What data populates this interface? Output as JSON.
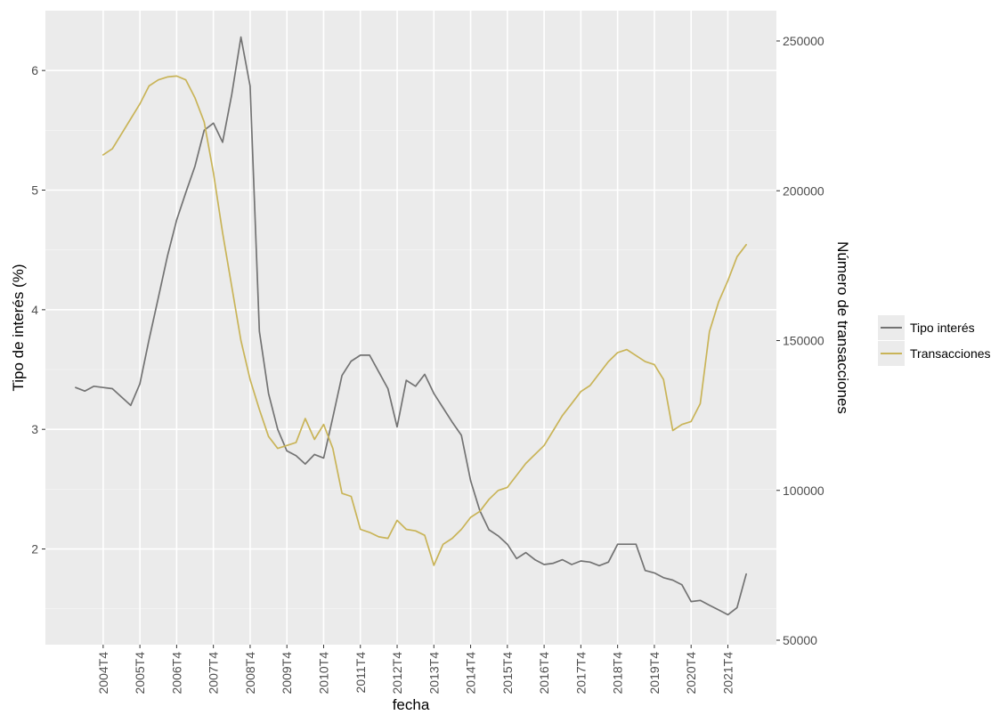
{
  "chart_data": {
    "type": "line",
    "xlabel": "fecha",
    "ylabel_left": "Tipo de interés (%)",
    "ylabel_right": "Número de transacciones",
    "x_tick_labels": [
      "2004T4",
      "2005T4",
      "2006T4",
      "2007T4",
      "2008T4",
      "2009T4",
      "2010T4",
      "2011T4",
      "2012T4",
      "2013T4",
      "2014T4",
      "2015T4",
      "2016T4",
      "2017T4",
      "2018T4",
      "2019T4",
      "2020T4",
      "2021T4"
    ],
    "x_range": [
      "2004T1",
      "2022T2"
    ],
    "ylim_left": [
      1.2,
      6.5
    ],
    "ylim_right": [
      50000,
      250000
    ],
    "yticks_left": [
      "2",
      "3",
      "4",
      "5",
      "6"
    ],
    "yticks_right": [
      "50000",
      "100000",
      "150000",
      "200000",
      "250000"
    ],
    "legend_placement": "right",
    "grid": true,
    "series": [
      {
        "name": "Tipo interés",
        "axis": "left",
        "color": "#737373",
        "values": [
          [
            "2004T1",
            3.35
          ],
          [
            "2004T2",
            3.32
          ],
          [
            "2004T3",
            3.36
          ],
          [
            "2004T4",
            3.35
          ],
          [
            "2005T1",
            3.34
          ],
          [
            "2005T2",
            3.27
          ],
          [
            "2005T3",
            3.2
          ],
          [
            "2005T4",
            3.38
          ],
          [
            "2006T1",
            3.75
          ],
          [
            "2006T2",
            4.1
          ],
          [
            "2006T3",
            4.45
          ],
          [
            "2006T4",
            4.75
          ],
          [
            "2007T1",
            4.98
          ],
          [
            "2007T2",
            5.2
          ],
          [
            "2007T3",
            5.5
          ],
          [
            "2007T4",
            5.56
          ],
          [
            "2008T1",
            5.4
          ],
          [
            "2008T2",
            5.8
          ],
          [
            "2008T3",
            6.28
          ],
          [
            "2008T4",
            5.87
          ],
          [
            "2009T1",
            3.82
          ],
          [
            "2009T2",
            3.3
          ],
          [
            "2009T3",
            3.0
          ],
          [
            "2009T4",
            2.82
          ],
          [
            "2010T1",
            2.78
          ],
          [
            "2010T2",
            2.71
          ],
          [
            "2010T3",
            2.79
          ],
          [
            "2010T4",
            2.76
          ],
          [
            "2011T1",
            3.1
          ],
          [
            "2011T2",
            3.45
          ],
          [
            "2011T3",
            3.57
          ],
          [
            "2011T4",
            3.62
          ],
          [
            "2012T1",
            3.62
          ],
          [
            "2012T2",
            3.48
          ],
          [
            "2012T3",
            3.34
          ],
          [
            "2012T4",
            3.02
          ],
          [
            "2013T1",
            3.41
          ],
          [
            "2013T2",
            3.36
          ],
          [
            "2013T3",
            3.46
          ],
          [
            "2013T4",
            3.3
          ],
          [
            "2014T1",
            3.18
          ],
          [
            "2014T2",
            3.06
          ],
          [
            "2014T3",
            2.95
          ],
          [
            "2014T4",
            2.57
          ],
          [
            "2015T1",
            2.32
          ],
          [
            "2015T2",
            2.16
          ],
          [
            "2015T3",
            2.11
          ],
          [
            "2015T4",
            2.04
          ],
          [
            "2016T1",
            1.92
          ],
          [
            "2016T2",
            1.97
          ],
          [
            "2016T3",
            1.91
          ],
          [
            "2016T4",
            1.87
          ],
          [
            "2017T1",
            1.88
          ],
          [
            "2017T2",
            1.91
          ],
          [
            "2017T3",
            1.87
          ],
          [
            "2017T4",
            1.9
          ],
          [
            "2018T1",
            1.89
          ],
          [
            "2018T2",
            1.86
          ],
          [
            "2018T3",
            1.89
          ],
          [
            "2018T4",
            2.04
          ],
          [
            "2019T1",
            2.04
          ],
          [
            "2019T2",
            2.04
          ],
          [
            "2019T3",
            1.82
          ],
          [
            "2019T4",
            1.8
          ],
          [
            "2020T1",
            1.76
          ],
          [
            "2020T2",
            1.74
          ],
          [
            "2020T3",
            1.7
          ],
          [
            "2020T4",
            1.56
          ],
          [
            "2021T1",
            1.57
          ],
          [
            "2021T2",
            1.53
          ],
          [
            "2021T3",
            1.49
          ],
          [
            "2021T4",
            1.45
          ],
          [
            "2022T1",
            1.51
          ],
          [
            "2022T2",
            1.79
          ]
        ]
      },
      {
        "name": "Transacciones",
        "axis": "right",
        "color": "#c9b458",
        "values": [
          [
            "2004T4",
            212000
          ],
          [
            "2005T1",
            214000
          ],
          [
            "2005T2",
            219000
          ],
          [
            "2005T3",
            224000
          ],
          [
            "2005T4",
            229000
          ],
          [
            "2006T1",
            235000
          ],
          [
            "2006T2",
            237000
          ],
          [
            "2006T3",
            238000
          ],
          [
            "2006T4",
            238300
          ],
          [
            "2007T1",
            237000
          ],
          [
            "2007T2",
            231000
          ],
          [
            "2007T3",
            223000
          ],
          [
            "2007T4",
            206000
          ],
          [
            "2008T1",
            186000
          ],
          [
            "2008T2",
            168000
          ],
          [
            "2008T3",
            150000
          ],
          [
            "2008T4",
            137000
          ],
          [
            "2009T1",
            127000
          ],
          [
            "2009T2",
            118000
          ],
          [
            "2009T3",
            114000
          ],
          [
            "2009T4",
            115000
          ],
          [
            "2010T1",
            116000
          ],
          [
            "2010T2",
            124000
          ],
          [
            "2010T3",
            117000
          ],
          [
            "2010T4",
            122000
          ],
          [
            "2011T1",
            114000
          ],
          [
            "2011T2",
            99000
          ],
          [
            "2011T3",
            98000
          ],
          [
            "2011T4",
            87000
          ],
          [
            "2012T1",
            86000
          ],
          [
            "2012T2",
            84500
          ],
          [
            "2012T3",
            84000
          ],
          [
            "2012T4",
            90000
          ],
          [
            "2013T1",
            87000
          ],
          [
            "2013T2",
            86500
          ],
          [
            "2013T3",
            85000
          ],
          [
            "2013T4",
            75000
          ],
          [
            "2014T1",
            82000
          ],
          [
            "2014T2",
            84000
          ],
          [
            "2014T3",
            87000
          ],
          [
            "2014T4",
            91000
          ],
          [
            "2015T1",
            93000
          ],
          [
            "2015T2",
            97000
          ],
          [
            "2015T3",
            100000
          ],
          [
            "2015T4",
            101000
          ],
          [
            "2016T1",
            105000
          ],
          [
            "2016T2",
            109000
          ],
          [
            "2016T3",
            112000
          ],
          [
            "2016T4",
            115000
          ],
          [
            "2017T1",
            120000
          ],
          [
            "2017T2",
            125000
          ],
          [
            "2017T3",
            129000
          ],
          [
            "2017T4",
            133000
          ],
          [
            "2018T1",
            135000
          ],
          [
            "2018T2",
            139000
          ],
          [
            "2018T3",
            143000
          ],
          [
            "2018T4",
            146000
          ],
          [
            "2019T1",
            147000
          ],
          [
            "2019T2",
            145000
          ],
          [
            "2019T3",
            143000
          ],
          [
            "2019T4",
            142000
          ],
          [
            "2020T1",
            137000
          ],
          [
            "2020T2",
            120000
          ],
          [
            "2020T3",
            122000
          ],
          [
            "2020T4",
            123000
          ],
          [
            "2021T1",
            129000
          ],
          [
            "2021T2",
            153000
          ],
          [
            "2021T3",
            163000
          ],
          [
            "2021T4",
            170000
          ],
          [
            "2022T1",
            178000
          ],
          [
            "2022T2",
            182000
          ]
        ]
      }
    ]
  }
}
